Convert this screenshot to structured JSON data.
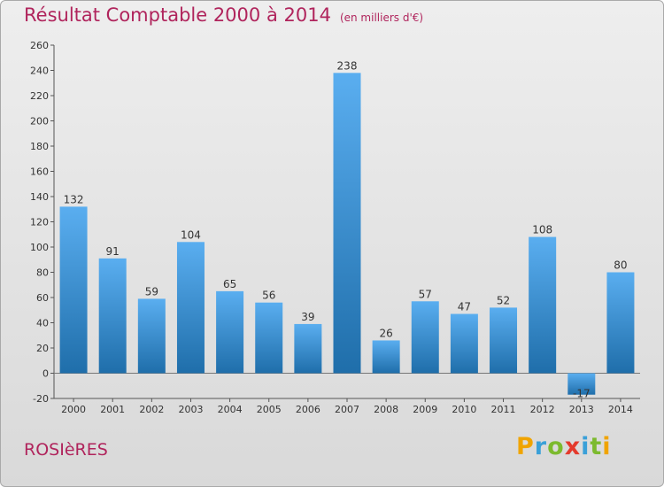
{
  "chart_data": {
    "type": "bar",
    "title": "Résultat Comptable 2000 à 2014",
    "unit": "(en milliers d'€)",
    "categories": [
      "2000",
      "2001",
      "2002",
      "2003",
      "2004",
      "2005",
      "2006",
      "2007",
      "2008",
      "2009",
      "2010",
      "2011",
      "2012",
      "2013",
      "2014"
    ],
    "values": [
      132,
      91,
      59,
      104,
      65,
      56,
      39,
      238,
      26,
      57,
      47,
      52,
      108,
      -17,
      80
    ],
    "data_labels": [
      "132",
      "91",
      "59",
      "104",
      "65",
      "56",
      "39",
      "238",
      "26",
      "57",
      "47",
      "52",
      "108",
      "-17",
      "80"
    ],
    "ylim": [
      -20,
      260
    ],
    "yticks": [
      -20,
      0,
      20,
      40,
      60,
      80,
      100,
      120,
      140,
      160,
      180,
      200,
      220,
      240,
      260
    ],
    "grid": false,
    "bar_color_light": "#5aaef0",
    "bar_color_dark": "#1f6eaa"
  },
  "footer": {
    "place": "ROSIèRES"
  },
  "logo": {
    "letters": [
      "P",
      "r",
      "o",
      "x",
      "i",
      "t",
      "i"
    ],
    "colors": [
      "#f0a400",
      "#3aa0d8",
      "#7cba2e",
      "#e43a2c",
      "#3aa0d8",
      "#7cba2e",
      "#f0a400"
    ]
  }
}
